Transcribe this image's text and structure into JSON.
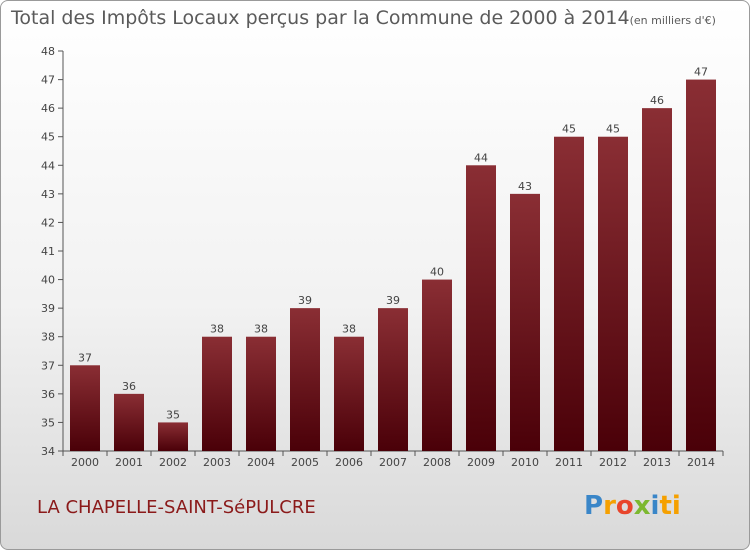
{
  "title": {
    "main": "Total des Impôts Locaux perçus par la Commune de 2000 à 2014",
    "unit": "(en milliers d'€)"
  },
  "commune": "LA CHAPELLE-SAINT-SéPULCRE",
  "logo": {
    "letters": [
      "P",
      "r",
      "o",
      "x",
      "i",
      "ti"
    ]
  },
  "colors": {
    "bar_top": "#8a2e34",
    "bar_bottom": "#4a0008",
    "commune_text": "#8b1a1a"
  },
  "chart_data": {
    "type": "bar",
    "title": "Total des Impôts Locaux perçus par la Commune de 2000 à 2014",
    "ylabel": "",
    "xlabel": "",
    "categories": [
      "2000",
      "2001",
      "2002",
      "2003",
      "2004",
      "2005",
      "2006",
      "2007",
      "2008",
      "2009",
      "2010",
      "2011",
      "2012",
      "2013",
      "2014"
    ],
    "values": [
      37,
      36,
      35,
      38,
      38,
      39,
      38,
      39,
      40,
      44,
      43,
      45,
      45,
      46,
      47
    ],
    "ylim": [
      34,
      48
    ],
    "yticks": [
      34,
      35,
      36,
      37,
      38,
      39,
      40,
      41,
      42,
      43,
      44,
      45,
      46,
      47,
      48
    ],
    "grid": false,
    "data_labels": true
  }
}
